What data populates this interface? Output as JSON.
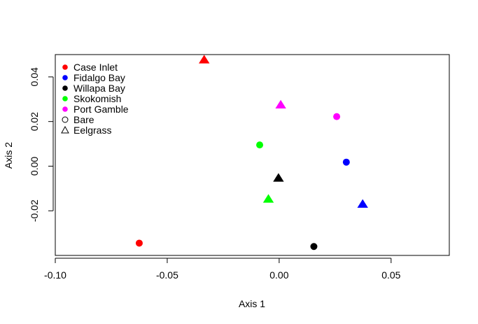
{
  "chart_data": {
    "type": "scatter",
    "xlabel": "Axis 1",
    "ylabel": "Axis 2",
    "xlim": [
      -0.1,
      0.076
    ],
    "ylim": [
      -0.04,
      0.05
    ],
    "xticks": [
      -0.1,
      -0.05,
      0.0,
      0.05
    ],
    "xtick_labels": [
      "-0.10",
      "-0.05",
      "0.00",
      "0.05"
    ],
    "yticks": [
      -0.02,
      0.0,
      0.02,
      0.04
    ],
    "ytick_labels": [
      "-0.02",
      "0.00",
      "0.02",
      "0.04"
    ],
    "grid": false,
    "legend_position": "top-left",
    "legend": [
      {
        "label": "Case Inlet",
        "color": "#ff0000",
        "shape": "filled-circle"
      },
      {
        "label": "Fidalgo Bay",
        "color": "#0000ff",
        "shape": "filled-circle"
      },
      {
        "label": "Willapa Bay",
        "color": "#000000",
        "shape": "filled-circle"
      },
      {
        "label": "Skokomish",
        "color": "#00ff00",
        "shape": "filled-circle"
      },
      {
        "label": "Port Gamble",
        "color": "#ff00ff",
        "shape": "filled-circle"
      },
      {
        "label": "Bare",
        "color": "#000000",
        "shape": "open-circle"
      },
      {
        "label": "Eelgrass",
        "color": "#000000",
        "shape": "open-triangle"
      }
    ],
    "points": [
      {
        "site": "Case Inlet",
        "habitat": "Eelgrass",
        "x": -0.0335,
        "y": 0.0477,
        "color": "#ff0000",
        "shape": "triangle"
      },
      {
        "site": "Case Inlet",
        "habitat": "Bare",
        "x": -0.0625,
        "y": -0.0345,
        "color": "#ff0000",
        "shape": "circle"
      },
      {
        "site": "Port Gamble",
        "habitat": "Eelgrass",
        "x": 0.0007,
        "y": 0.0275,
        "color": "#ff00ff",
        "shape": "triangle"
      },
      {
        "site": "Port Gamble",
        "habitat": "Bare",
        "x": 0.0257,
        "y": 0.0222,
        "color": "#ff00ff",
        "shape": "circle"
      },
      {
        "site": "Skokomish",
        "habitat": "Bare",
        "x": -0.0087,
        "y": 0.0095,
        "color": "#00ff00",
        "shape": "circle"
      },
      {
        "site": "Skokomish",
        "habitat": "Eelgrass",
        "x": -0.0048,
        "y": -0.0147,
        "color": "#00ff00",
        "shape": "triangle"
      },
      {
        "site": "Willapa Bay",
        "habitat": "Eelgrass",
        "x": -0.0003,
        "y": -0.0053,
        "color": "#000000",
        "shape": "triangle"
      },
      {
        "site": "Willapa Bay",
        "habitat": "Bare",
        "x": 0.0155,
        "y": -0.036,
        "color": "#000000",
        "shape": "circle"
      },
      {
        "site": "Fidalgo Bay",
        "habitat": "Bare",
        "x": 0.03,
        "y": 0.0018,
        "color": "#0000ff",
        "shape": "circle"
      },
      {
        "site": "Fidalgo Bay",
        "habitat": "Eelgrass",
        "x": 0.0373,
        "y": -0.017,
        "color": "#0000ff",
        "shape": "triangle"
      }
    ]
  }
}
